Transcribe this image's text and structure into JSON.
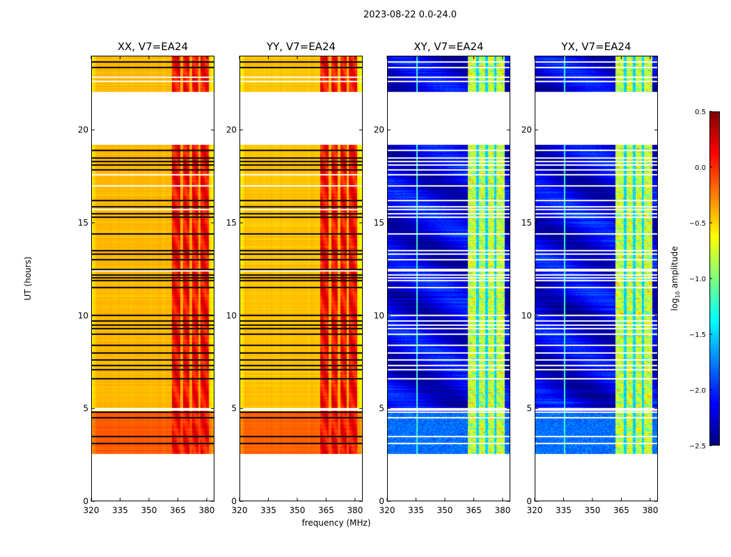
{
  "title": "2023-08-22 0.0-24.0",
  "chart_data": {
    "type": "heatmap",
    "title": "2023-08-22 0.0-24.0",
    "xlabel": "frequency (MHz)",
    "ylabel": "UT (hours)",
    "xlim": [
      320,
      384
    ],
    "ylim": [
      0,
      24
    ],
    "xticks": [
      320,
      335,
      350,
      365,
      380
    ],
    "yticks": [
      0,
      5,
      10,
      15,
      20
    ],
    "data_time_ranges": [
      [
        2.55,
        19.2
      ],
      [
        22.05,
        24
      ]
    ],
    "colorbar": {
      "label_main": "log",
      "label_sub": "10",
      "label_rest": " amplitude",
      "vmin": -2.5,
      "vmax": 0.5,
      "ticks": [
        "0.5",
        "0.0",
        "−0.5",
        "−1.0",
        "−1.5",
        "−2.0",
        "−2.5"
      ],
      "tick_values": [
        0.5,
        0.0,
        -0.5,
        -1.0,
        -1.5,
        -2.0,
        -2.5
      ],
      "colormap": "jet"
    },
    "flagged_rows_hours": [
      23.65,
      23.35,
      18.9,
      18.5,
      18.3,
      18.1,
      17.85,
      16.2,
      15.85,
      15.5,
      15.3,
      14.4,
      13.5,
      13.3,
      13.0,
      12.5,
      12.2,
      12.05,
      11.9,
      11.5,
      10.0,
      9.7,
      9.5,
      9.3,
      9.0,
      8.4,
      8.0,
      7.6,
      7.3,
      7.1,
      6.6,
      4.8,
      4.5,
      3.5,
      3.1
    ],
    "gap_rows_hours": [
      22.85,
      22.6,
      17.6,
      17.0,
      15.7,
      12.4,
      5.0,
      4.9
    ],
    "panels": [
      {
        "title": "XX, V7=EA24",
        "kind": "auto",
        "base_level": -0.42,
        "band_level": 0.1
      },
      {
        "title": "YY, V7=EA24",
        "kind": "auto",
        "base_level": -0.45,
        "band_level": 0.1
      },
      {
        "title": "XY, V7=EA24",
        "kind": "cross",
        "base_level": -2.2,
        "band_level": -0.8
      },
      {
        "title": "YX, V7=EA24",
        "kind": "cross",
        "base_level": -2.2,
        "band_level": -0.8
      }
    ],
    "strong_band_MHz": [
      362,
      381
    ]
  }
}
